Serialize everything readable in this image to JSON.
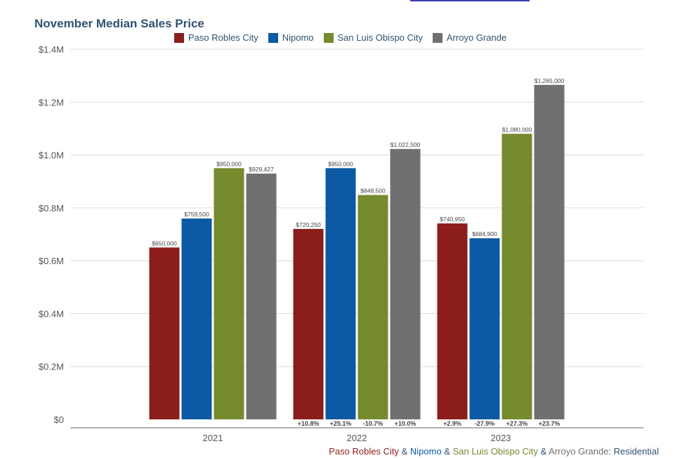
{
  "chart_data": {
    "type": "bar",
    "title": "November Median Sales Price",
    "categories": [
      "2021",
      "2022",
      "2023"
    ],
    "series": [
      {
        "name": "Paso Robles City",
        "color": "#8b1e1a",
        "values": [
          650000,
          720250,
          740950
        ],
        "value_labels": [
          "$650,000",
          "$720,250",
          "$740,950"
        ],
        "change_labels": [
          "",
          "+10.8%",
          "+2.9%"
        ]
      },
      {
        "name": "Nipomo",
        "color": "#0b5aa3",
        "values": [
          759500,
          950000,
          684900
        ],
        "value_labels": [
          "$759,500",
          "$950,000",
          "$684,900"
        ],
        "change_labels": [
          "",
          "+25.1%",
          "-27.9%"
        ]
      },
      {
        "name": "San Luis Obispo City",
        "color": "#768a2e",
        "values": [
          950000,
          848500,
          1080000
        ],
        "value_labels": [
          "$950,000",
          "$848,500",
          "$1,080,000"
        ],
        "change_labels": [
          "",
          "-10.7%",
          "+27.3%"
        ]
      },
      {
        "name": "Arroyo Grande",
        "color": "#707070",
        "values": [
          929427,
          1022500,
          1265000
        ],
        "value_labels": [
          "$929,427",
          "$1,022,500",
          "$1,265,000"
        ],
        "change_labels": [
          "",
          "+10.0%",
          "+23.7%"
        ]
      }
    ],
    "ylim": [
      0,
      1400000
    ],
    "yticks": [
      0,
      200000,
      400000,
      600000,
      800000,
      1000000,
      1200000,
      1400000
    ],
    "ytick_labels": [
      "$0",
      "$0.2M",
      "$0.4M",
      "$0.6M",
      "$0.8M",
      "$1.0M",
      "$1.2M",
      "$1.4M"
    ],
    "grid": true,
    "legend_position": "top-center"
  },
  "footer": {
    "parts": [
      {
        "text": "Paso Robles City",
        "color": "#8b1e1a"
      },
      {
        "text": " & ",
        "color": "#2e5272"
      },
      {
        "text": "Nipomo",
        "color": "#0b5aa3"
      },
      {
        "text": " & ",
        "color": "#2e5272"
      },
      {
        "text": "San Luis Obispo City",
        "color": "#768a2e"
      },
      {
        "text": " & ",
        "color": "#2e5272"
      },
      {
        "text": "Arroyo Grande",
        "color": "#707070"
      },
      {
        "text": ": ",
        "color": "#2e5272"
      },
      {
        "text": "Residential",
        "color": "#2e5272"
      }
    ]
  }
}
